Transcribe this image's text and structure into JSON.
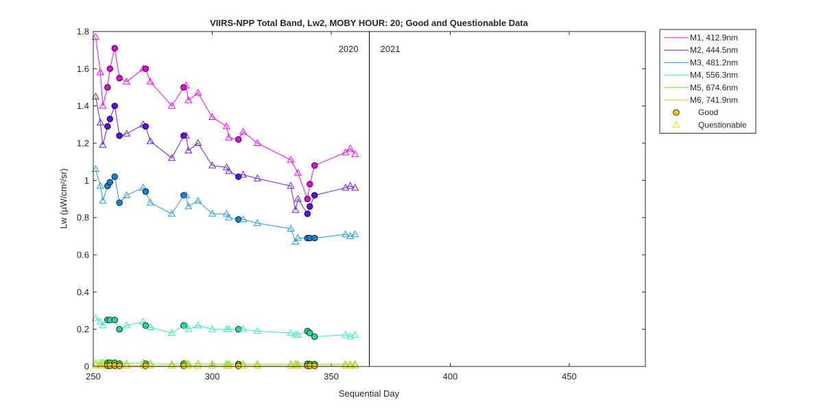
{
  "chart_data": {
    "type": "line",
    "title": "VIIRS-NPP Total Band,  Lw2, MOBY HOUR: 20;  Good and Questionable Data",
    "xlabel": "Sequential Day",
    "ylabel": "Lw (µW/cm²/sr)",
    "xlim": [
      250,
      482
    ],
    "ylim": [
      0,
      1.8
    ],
    "xticks": [
      "250",
      "300",
      "350",
      "400",
      "450"
    ],
    "yticks": [
      "0",
      "0.2",
      "0.4",
      "0.6",
      "0.8",
      "1",
      "1.2",
      "1.4",
      "1.6",
      "1.8"
    ],
    "year_boundary": 366,
    "year_labels": [
      "2020",
      "2021"
    ],
    "legend_position": "outside-top-right",
    "series": [
      {
        "name": "M1, 412.9nm",
        "color": "#ff00ff",
        "marker_fill": "#e600d8",
        "points": [
          [
            251,
            1.77,
            "Q"
          ],
          [
            253,
            1.58,
            "Q"
          ],
          [
            254,
            1.4,
            "Q"
          ],
          [
            256,
            1.5,
            "G"
          ],
          [
            257,
            1.6,
            "G"
          ],
          [
            259,
            1.71,
            "G"
          ],
          [
            261,
            1.55,
            "G"
          ],
          [
            264,
            1.53,
            "Q"
          ],
          [
            271,
            1.6,
            "Q"
          ],
          [
            272,
            1.6,
            "G"
          ],
          [
            274,
            1.53,
            "Q"
          ],
          [
            283,
            1.4,
            "Q"
          ],
          [
            288,
            1.5,
            "G"
          ],
          [
            289,
            1.51,
            "Q"
          ],
          [
            290,
            1.43,
            "Q"
          ],
          [
            294,
            1.47,
            "Q"
          ],
          [
            300,
            1.34,
            "Q"
          ],
          [
            306,
            1.29,
            "Q"
          ],
          [
            307,
            1.23,
            "Q"
          ],
          [
            311,
            1.22,
            "G"
          ],
          [
            313,
            1.26,
            "Q"
          ],
          [
            319,
            1.2,
            "Q"
          ],
          [
            333,
            1.11,
            "Q"
          ],
          [
            336,
            1.04,
            "Q"
          ],
          [
            340,
            0.9,
            "G"
          ],
          [
            341,
            0.98,
            "G"
          ],
          [
            343,
            1.08,
            "G"
          ],
          [
            356,
            1.15,
            "Q"
          ],
          [
            358,
            1.17,
            "Q"
          ],
          [
            360,
            1.14,
            "Q"
          ]
        ]
      },
      {
        "name": "M2, 444.5nm",
        "color": "#6a1de6",
        "marker_fill": "#5a10e0",
        "points": [
          [
            251,
            1.45,
            "Q"
          ],
          [
            253,
            1.31,
            "Q"
          ],
          [
            254,
            1.19,
            "Q"
          ],
          [
            256,
            1.29,
            "G"
          ],
          [
            257,
            1.33,
            "G"
          ],
          [
            259,
            1.4,
            "G"
          ],
          [
            261,
            1.24,
            "G"
          ],
          [
            264,
            1.25,
            "Q"
          ],
          [
            271,
            1.3,
            "Q"
          ],
          [
            272,
            1.29,
            "G"
          ],
          [
            274,
            1.21,
            "Q"
          ],
          [
            283,
            1.12,
            "Q"
          ],
          [
            288,
            1.24,
            "G"
          ],
          [
            289,
            1.24,
            "Q"
          ],
          [
            290,
            1.16,
            "Q"
          ],
          [
            294,
            1.2,
            "Q"
          ],
          [
            300,
            1.08,
            "Q"
          ],
          [
            306,
            1.07,
            "Q"
          ],
          [
            307,
            1.05,
            "Q"
          ],
          [
            311,
            1.02,
            "G"
          ],
          [
            313,
            1.03,
            "Q"
          ],
          [
            319,
            1.01,
            "Q"
          ],
          [
            333,
            0.97,
            "Q"
          ],
          [
            335,
            0.84,
            "Q"
          ],
          [
            336,
            0.9,
            "Q"
          ],
          [
            340,
            0.82,
            "G"
          ],
          [
            341,
            0.86,
            "G"
          ],
          [
            343,
            0.92,
            "G"
          ],
          [
            356,
            0.96,
            "Q"
          ],
          [
            358,
            0.97,
            "Q"
          ],
          [
            360,
            0.96,
            "Q"
          ]
        ]
      },
      {
        "name": "M3, 481.2nm",
        "color": "#1e9be6",
        "marker_fill": "#1480d8",
        "points": [
          [
            251,
            1.06,
            "Q"
          ],
          [
            253,
            0.97,
            "Q"
          ],
          [
            254,
            0.89,
            "Q"
          ],
          [
            256,
            0.97,
            "G"
          ],
          [
            257,
            0.99,
            "G"
          ],
          [
            259,
            1.02,
            "G"
          ],
          [
            261,
            0.88,
            "G"
          ],
          [
            264,
            0.92,
            "Q"
          ],
          [
            271,
            0.96,
            "Q"
          ],
          [
            272,
            0.94,
            "G"
          ],
          [
            274,
            0.88,
            "Q"
          ],
          [
            283,
            0.82,
            "Q"
          ],
          [
            288,
            0.92,
            "G"
          ],
          [
            289,
            0.92,
            "Q"
          ],
          [
            290,
            0.86,
            "Q"
          ],
          [
            294,
            0.89,
            "Q"
          ],
          [
            300,
            0.82,
            "Q"
          ],
          [
            306,
            0.82,
            "Q"
          ],
          [
            307,
            0.8,
            "Q"
          ],
          [
            311,
            0.79,
            "G"
          ],
          [
            313,
            0.79,
            "Q"
          ],
          [
            319,
            0.77,
            "Q"
          ],
          [
            333,
            0.74,
            "Q"
          ],
          [
            335,
            0.67,
            "Q"
          ],
          [
            336,
            0.69,
            "Q"
          ],
          [
            340,
            0.69,
            "G"
          ],
          [
            341,
            0.69,
            "G"
          ],
          [
            343,
            0.69,
            "G"
          ],
          [
            356,
            0.71,
            "Q"
          ],
          [
            358,
            0.7,
            "Q"
          ],
          [
            360,
            0.71,
            "Q"
          ]
        ]
      },
      {
        "name": "M4, 556.3nm",
        "color": "#33e6c8",
        "marker_fill": "#20d8a0",
        "points": [
          [
            251,
            0.26,
            "Q"
          ],
          [
            253,
            0.24,
            "Q"
          ],
          [
            254,
            0.22,
            "Q"
          ],
          [
            256,
            0.25,
            "G"
          ],
          [
            257,
            0.25,
            "G"
          ],
          [
            259,
            0.25,
            "G"
          ],
          [
            261,
            0.2,
            "G"
          ],
          [
            264,
            0.22,
            "Q"
          ],
          [
            271,
            0.24,
            "Q"
          ],
          [
            272,
            0.22,
            "G"
          ],
          [
            274,
            0.21,
            "Q"
          ],
          [
            283,
            0.18,
            "Q"
          ],
          [
            288,
            0.22,
            "G"
          ],
          [
            289,
            0.22,
            "Q"
          ],
          [
            290,
            0.2,
            "Q"
          ],
          [
            294,
            0.22,
            "Q"
          ],
          [
            300,
            0.2,
            "Q"
          ],
          [
            306,
            0.2,
            "Q"
          ],
          [
            307,
            0.2,
            "Q"
          ],
          [
            311,
            0.2,
            "G"
          ],
          [
            313,
            0.2,
            "Q"
          ],
          [
            319,
            0.19,
            "Q"
          ],
          [
            333,
            0.18,
            "Q"
          ],
          [
            335,
            0.17,
            "Q"
          ],
          [
            336,
            0.17,
            "Q"
          ],
          [
            340,
            0.19,
            "G"
          ],
          [
            341,
            0.18,
            "G"
          ],
          [
            343,
            0.16,
            "G"
          ],
          [
            356,
            0.17,
            "Q"
          ],
          [
            358,
            0.16,
            "Q"
          ],
          [
            360,
            0.17,
            "Q"
          ]
        ]
      },
      {
        "name": "M5, 674.6nm",
        "color": "#66e633",
        "marker_fill": "#40d820",
        "points": [
          [
            251,
            0.02,
            "Q"
          ],
          [
            253,
            0.02,
            "Q"
          ],
          [
            254,
            0.02,
            "Q"
          ],
          [
            256,
            0.02,
            "G"
          ],
          [
            257,
            0.02,
            "G"
          ],
          [
            259,
            0.02,
            "G"
          ],
          [
            261,
            0.015,
            "G"
          ],
          [
            264,
            0.015,
            "Q"
          ],
          [
            271,
            0.02,
            "Q"
          ],
          [
            272,
            0.015,
            "G"
          ],
          [
            274,
            0.015,
            "Q"
          ],
          [
            283,
            0.012,
            "Q"
          ],
          [
            288,
            0.015,
            "G"
          ],
          [
            289,
            0.015,
            "Q"
          ],
          [
            290,
            0.013,
            "Q"
          ],
          [
            294,
            0.015,
            "Q"
          ],
          [
            300,
            0.013,
            "Q"
          ],
          [
            306,
            0.013,
            "Q"
          ],
          [
            307,
            0.013,
            "Q"
          ],
          [
            311,
            0.013,
            "G"
          ],
          [
            313,
            0.013,
            "Q"
          ],
          [
            319,
            0.012,
            "Q"
          ],
          [
            333,
            0.012,
            "Q"
          ],
          [
            335,
            0.012,
            "Q"
          ],
          [
            336,
            0.012,
            "Q"
          ],
          [
            340,
            0.014,
            "G"
          ],
          [
            341,
            0.013,
            "G"
          ],
          [
            343,
            0.012,
            "G"
          ],
          [
            356,
            0.012,
            "Q"
          ],
          [
            358,
            0.012,
            "Q"
          ],
          [
            360,
            0.012,
            "Q"
          ]
        ]
      },
      {
        "name": "M6, 741.9nm",
        "color": "#e6c800",
        "marker_fill": "#f0c800",
        "points": [
          [
            251,
            0.005,
            "Q"
          ],
          [
            253,
            0.004,
            "Q"
          ],
          [
            254,
            0.004,
            "Q"
          ],
          [
            256,
            0.004,
            "G"
          ],
          [
            257,
            0.004,
            "G"
          ],
          [
            259,
            0.004,
            "G"
          ],
          [
            261,
            0.003,
            "G"
          ],
          [
            264,
            0.003,
            "Q"
          ],
          [
            271,
            0.004,
            "Q"
          ],
          [
            272,
            0.003,
            "G"
          ],
          [
            274,
            0.003,
            "Q"
          ],
          [
            283,
            0.003,
            "Q"
          ],
          [
            288,
            0.003,
            "G"
          ],
          [
            289,
            0.003,
            "Q"
          ],
          [
            290,
            0.003,
            "Q"
          ],
          [
            294,
            0.003,
            "Q"
          ],
          [
            300,
            0.003,
            "Q"
          ],
          [
            306,
            0.003,
            "Q"
          ],
          [
            307,
            0.003,
            "Q"
          ],
          [
            311,
            0.003,
            "G"
          ],
          [
            313,
            0.003,
            "Q"
          ],
          [
            319,
            0.003,
            "Q"
          ],
          [
            333,
            0.003,
            "Q"
          ],
          [
            335,
            0.003,
            "Q"
          ],
          [
            336,
            0.003,
            "Q"
          ],
          [
            340,
            0.003,
            "G"
          ],
          [
            341,
            0.003,
            "G"
          ],
          [
            343,
            0.003,
            "G"
          ],
          [
            356,
            0.003,
            "Q"
          ],
          [
            358,
            0.003,
            "Q"
          ],
          [
            360,
            0.003,
            "Q"
          ]
        ]
      }
    ],
    "marker_legend": [
      {
        "label": "Good",
        "marker": "circle",
        "fill": "#f0c800"
      },
      {
        "label": "Questionable",
        "marker": "triangle",
        "fill": "none",
        "stroke": "#f0d800"
      }
    ]
  }
}
